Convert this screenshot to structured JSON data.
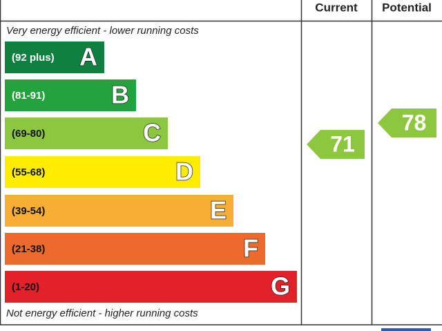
{
  "header": {
    "current": "Current",
    "potential": "Potential"
  },
  "top_note": "Very energy efficient - lower running costs",
  "bottom_note": "Not energy efficient - higher running costs",
  "bands": [
    {
      "range": "(92 plus)",
      "letter": "A",
      "color": "#0f8040",
      "text_color": "#ffffff"
    },
    {
      "range": "(81-91)",
      "letter": "B",
      "color": "#22a33d",
      "text_color": "#ffffff"
    },
    {
      "range": "(69-80)",
      "letter": "C",
      "color": "#8dc63f",
      "text_color": "#111111"
    },
    {
      "range": "(55-68)",
      "letter": "D",
      "color": "#ffed00",
      "text_color": "#111111"
    },
    {
      "range": "(39-54)",
      "letter": "E",
      "color": "#f7ae34",
      "text_color": "#111111"
    },
    {
      "range": "(21-38)",
      "letter": "F",
      "color": "#ec6b2c",
      "text_color": "#111111"
    },
    {
      "range": "(1-20)",
      "letter": "G",
      "color": "#e2212a",
      "text_color": "#111111"
    }
  ],
  "current": {
    "value": 71,
    "color": "#8dc63f"
  },
  "potential": {
    "value": 78,
    "color": "#8dc63f"
  }
}
